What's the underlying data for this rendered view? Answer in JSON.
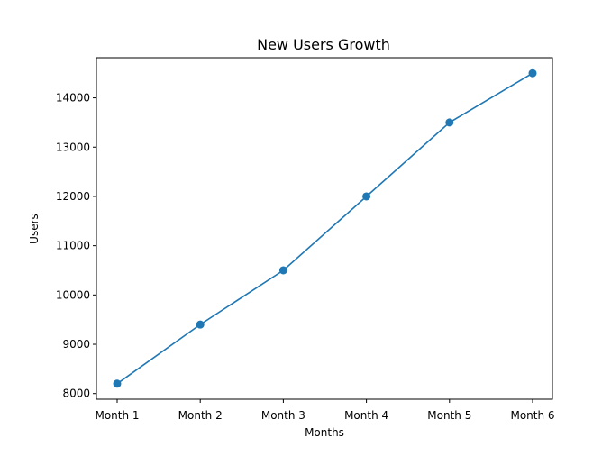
{
  "chart_data": {
    "type": "line",
    "title": "New Users Growth",
    "xlabel": "Months",
    "ylabel": "Users",
    "categories": [
      "Month 1",
      "Month 2",
      "Month 3",
      "Month 4",
      "Month 5",
      "Month 6"
    ],
    "series": [
      {
        "values": [
          8200,
          9400,
          10500,
          12000,
          13500,
          14500
        ]
      }
    ],
    "yticks": [
      8000,
      9000,
      10000,
      11000,
      12000,
      13000,
      14000
    ],
    "ylim": [
      7885,
      14815
    ],
    "grid": false,
    "marker": "circle",
    "colors": {
      "line": "#1f77b4",
      "axes": "#000000",
      "background": "#ffffff"
    }
  }
}
